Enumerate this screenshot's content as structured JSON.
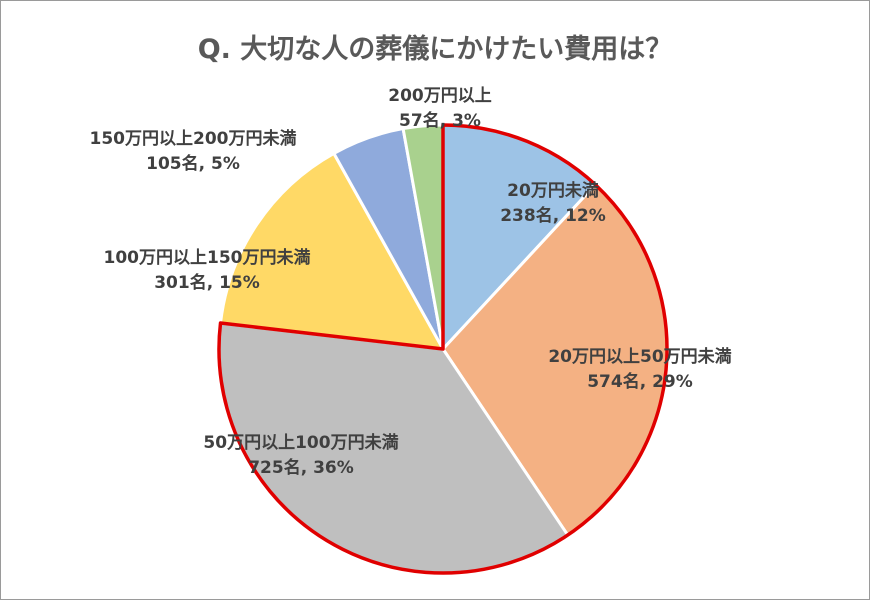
{
  "chart_data": {
    "type": "pie",
    "title": "Q. 大切な人の葬儀にかけたい費用は？",
    "start_angle_deg": 0,
    "direction": "clockwise",
    "slices": [
      {
        "label": "20万円未満",
        "count": 238,
        "count_text": "238名",
        "percent": 12,
        "percent_text": "12%",
        "color": "#9DC3E6",
        "highlighted": true
      },
      {
        "label": "20万円以上50万円未満",
        "count": 574,
        "count_text": "574名",
        "percent": 29,
        "percent_text": "29%",
        "color": "#F4B183",
        "highlighted": true
      },
      {
        "label": "50万円以上100万円未満",
        "count": 725,
        "count_text": "725名",
        "percent": 36,
        "percent_text": "36%",
        "color": "#BFBFBF",
        "highlighted": true
      },
      {
        "label": "100万円以上150万円未満",
        "count": 301,
        "count_text": "301名",
        "percent": 15,
        "percent_text": "15%",
        "color": "#FFD966",
        "highlighted": false
      },
      {
        "label": "150万円以上200万円未満",
        "count": 105,
        "count_text": "105名",
        "percent": 5,
        "percent_text": "5%",
        "color": "#8FAADC",
        "highlighted": false
      },
      {
        "label": "200万円以上",
        "count": 57,
        "count_text": "57名",
        "percent": 3,
        "percent_text": "3%",
        "color": "#A9D18E",
        "highlighted": false
      }
    ],
    "highlight_color": "#E00000",
    "legend": "none"
  }
}
